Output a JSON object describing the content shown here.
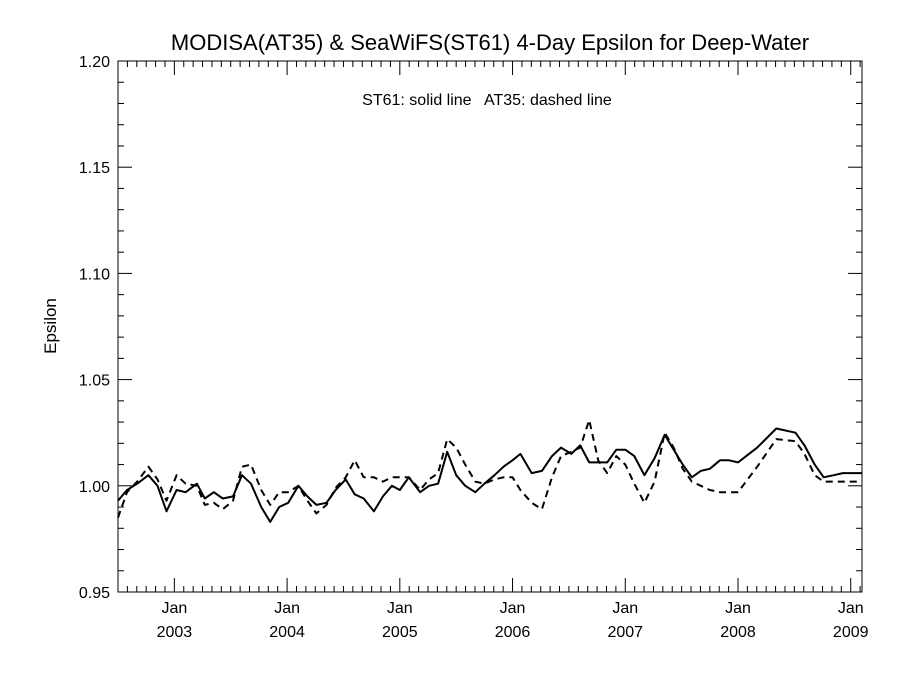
{
  "chart_data": {
    "type": "line",
    "title": "MODISA(AT35) & SeaWiFS(ST61) 4-Day Epsilon for Deep-Water",
    "annotation": "ST61: solid line   AT35: dashed line",
    "ylabel": "Epsilon",
    "xlabel": "",
    "ylim": [
      0.95,
      1.2
    ],
    "xlim": [
      2002.5,
      2009.1
    ],
    "yticks": [
      0.95,
      1.0,
      1.05,
      1.1,
      1.15,
      1.2
    ],
    "ytick_labels": [
      "0.95",
      "1.00",
      "1.05",
      "1.10",
      "1.15",
      "1.20"
    ],
    "xticks": [
      {
        "x": 2003,
        "month": "Jan",
        "year": "2003"
      },
      {
        "x": 2004,
        "month": "Jan",
        "year": "2004"
      },
      {
        "x": 2005,
        "month": "Jan",
        "year": "2005"
      },
      {
        "x": 2006,
        "month": "Jan",
        "year": "2006"
      },
      {
        "x": 2007,
        "month": "Jan",
        "year": "2007"
      },
      {
        "x": 2008,
        "month": "Jan",
        "year": "2008"
      },
      {
        "x": 2009,
        "month": "Jan",
        "year": "2009"
      }
    ],
    "grid": false,
    "series": [
      {
        "name": "ST61",
        "style": "solid",
        "color": "#000000",
        "x": [
          2002.5,
          2002.58,
          2002.67,
          2002.77,
          2002.85,
          2002.93,
          2003.02,
          2003.1,
          2003.2,
          2003.27,
          2003.35,
          2003.43,
          2003.52,
          2003.6,
          2003.68,
          2003.77,
          2003.85,
          2003.93,
          2004.01,
          2004.1,
          2004.18,
          2004.26,
          2004.35,
          2004.43,
          2004.52,
          2004.6,
          2004.68,
          2004.77,
          2004.85,
          2004.93,
          2005.0,
          2005.08,
          2005.18,
          2005.26,
          2005.34,
          2005.42,
          2005.5,
          2005.58,
          2005.67,
          2005.75,
          2005.84,
          2005.92,
          2006.0,
          2006.07,
          2006.17,
          2006.26,
          2006.35,
          2006.43,
          2006.52,
          2006.6,
          2006.68,
          2006.76,
          2006.84,
          2006.92,
          2007.0,
          2007.08,
          2007.17,
          2007.26,
          2007.35,
          2007.43,
          2007.51,
          2007.59,
          2007.67,
          2007.75,
          2007.84,
          2007.92,
          2008.0,
          2008.17,
          2008.34,
          2008.51,
          2008.59,
          2008.68,
          2008.76,
          2008.85,
          2008.93,
          2009.01,
          2009.1
        ],
        "values": [
          0.993,
          0.998,
          1.001,
          1.005,
          1.0,
          0.988,
          0.998,
          0.997,
          1.001,
          0.994,
          0.997,
          0.994,
          0.995,
          1.005,
          1.001,
          0.99,
          0.983,
          0.99,
          0.992,
          1.0,
          0.995,
          0.991,
          0.992,
          0.998,
          1.003,
          0.996,
          0.994,
          0.988,
          0.995,
          1.0,
          0.998,
          1.004,
          0.997,
          1.0,
          1.001,
          1.016,
          1.005,
          1.0,
          0.997,
          1.001,
          1.005,
          1.009,
          1.012,
          1.015,
          1.006,
          1.007,
          1.014,
          1.018,
          1.015,
          1.019,
          1.011,
          1.011,
          1.011,
          1.017,
          1.017,
          1.014,
          1.005,
          1.013,
          1.024,
          1.017,
          1.01,
          1.004,
          1.007,
          1.008,
          1.012,
          1.012,
          1.011,
          1.018,
          1.027,
          1.025,
          1.019,
          1.01,
          1.004,
          1.005,
          1.006,
          1.006,
          1.006
        ]
      },
      {
        "name": "AT35",
        "style": "dashed",
        "color": "#000000",
        "x": [
          2002.5,
          2002.58,
          2002.67,
          2002.77,
          2002.85,
          2002.93,
          2003.02,
          2003.1,
          2003.2,
          2003.27,
          2003.35,
          2003.43,
          2003.52,
          2003.6,
          2003.68,
          2003.77,
          2003.85,
          2003.93,
          2004.01,
          2004.1,
          2004.18,
          2004.26,
          2004.35,
          2004.43,
          2004.52,
          2004.6,
          2004.68,
          2004.77,
          2004.85,
          2004.93,
          2005.0,
          2005.08,
          2005.18,
          2005.26,
          2005.34,
          2005.42,
          2005.5,
          2005.58,
          2005.67,
          2005.75,
          2005.84,
          2005.92,
          2006.0,
          2006.07,
          2006.17,
          2006.26,
          2006.35,
          2006.43,
          2006.52,
          2006.6,
          2006.68,
          2006.76,
          2006.84,
          2006.92,
          2007.0,
          2007.08,
          2007.17,
          2007.26,
          2007.35,
          2007.43,
          2007.51,
          2007.59,
          2007.67,
          2007.75,
          2007.84,
          2007.92,
          2008.0,
          2008.17,
          2008.34,
          2008.51,
          2008.59,
          2008.68,
          2008.76,
          2008.85,
          2008.93,
          2009.01,
          2009.1
        ],
        "values": [
          0.985,
          0.997,
          1.002,
          1.009,
          1.003,
          0.993,
          1.005,
          1.001,
          1.0,
          0.991,
          0.992,
          0.989,
          0.993,
          1.009,
          1.01,
          0.998,
          0.991,
          0.997,
          0.997,
          1.0,
          0.993,
          0.987,
          0.991,
          0.999,
          1.004,
          1.012,
          1.004,
          1.004,
          1.002,
          1.004,
          1.004,
          1.004,
          0.998,
          1.003,
          1.006,
          1.022,
          1.018,
          1.01,
          1.002,
          1.001,
          1.003,
          1.004,
          1.004,
          0.998,
          0.992,
          0.989,
          1.004,
          1.014,
          1.016,
          1.018,
          1.031,
          1.012,
          1.006,
          1.014,
          1.01,
          1.001,
          0.992,
          1.002,
          1.025,
          1.018,
          1.008,
          1.002,
          1.0,
          0.998,
          0.997,
          0.997,
          0.997,
          1.009,
          1.022,
          1.021,
          1.015,
          1.005,
          1.002,
          1.002,
          1.002,
          1.002,
          1.002
        ]
      }
    ]
  }
}
